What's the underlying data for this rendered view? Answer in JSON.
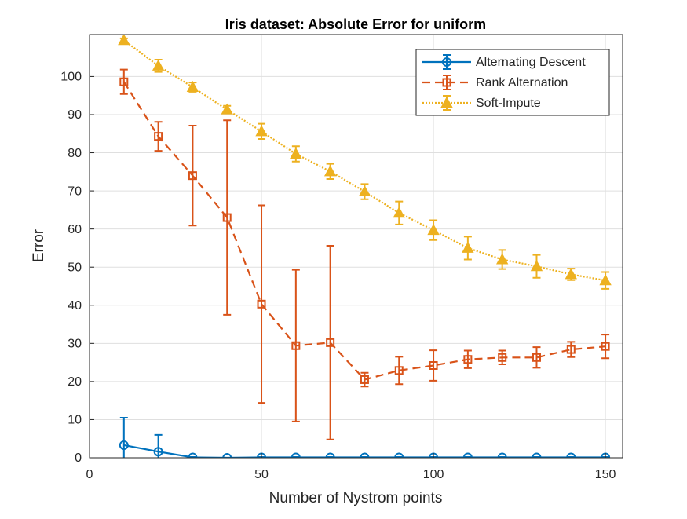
{
  "chart_data": {
    "type": "errorbar-line",
    "title": "Iris dataset: Absolute Error for uniform",
    "xlabel": "Number of Nystrom points",
    "ylabel": "Error",
    "x": [
      10,
      20,
      30,
      40,
      50,
      60,
      70,
      80,
      90,
      100,
      110,
      120,
      130,
      140,
      150
    ],
    "xlim": [
      0,
      155
    ],
    "ylim": [
      0,
      111
    ],
    "xticks": [
      0,
      50,
      100,
      150
    ],
    "yticks": [
      0,
      10,
      20,
      30,
      40,
      50,
      60,
      70,
      80,
      90,
      100
    ],
    "grid": true,
    "legend_position": "top-right",
    "series": [
      {
        "name": "Alternating Descent",
        "color": "#0072BD",
        "line_style": "solid",
        "marker": "circle",
        "values": [
          3.3,
          1.6,
          0.1,
          0,
          0.1,
          0.1,
          0.1,
          0.1,
          0.1,
          0.1,
          0.1,
          0.1,
          0.1,
          0.1,
          0.1
        ],
        "errors": [
          7.2,
          4.4,
          0.1,
          0,
          0.1,
          0.1,
          0.1,
          0.1,
          0.1,
          0.1,
          0.1,
          0.1,
          0.1,
          0.1,
          0.1
        ]
      },
      {
        "name": "Rank Alternation",
        "color": "#D95319",
        "line_style": "dashed",
        "marker": "square",
        "values": [
          98.6,
          84.3,
          74,
          63,
          40.3,
          29.4,
          30.2,
          20.5,
          22.9,
          24.2,
          25.8,
          26.3,
          26.3,
          28.4,
          29.2
        ],
        "errors": [
          3.2,
          3.8,
          13.1,
          25.5,
          25.9,
          19.9,
          25.4,
          1.8,
          3.6,
          4,
          2.3,
          1.8,
          2.7,
          2,
          3.1
        ]
      },
      {
        "name": "Soft-Impute",
        "color": "#EDB120",
        "line_style": "dotted",
        "marker": "triangle",
        "values": [
          109.5,
          102.8,
          97.2,
          91.3,
          85.6,
          79.7,
          75.1,
          69.8,
          64.2,
          59.7,
          55,
          52,
          50.2,
          48.1,
          46.5
        ],
        "errors": [
          0.5,
          1.6,
          1.2,
          1,
          2,
          2,
          2,
          2,
          3,
          2.6,
          3,
          2.5,
          3,
          1.5,
          2.2
        ]
      }
    ]
  }
}
